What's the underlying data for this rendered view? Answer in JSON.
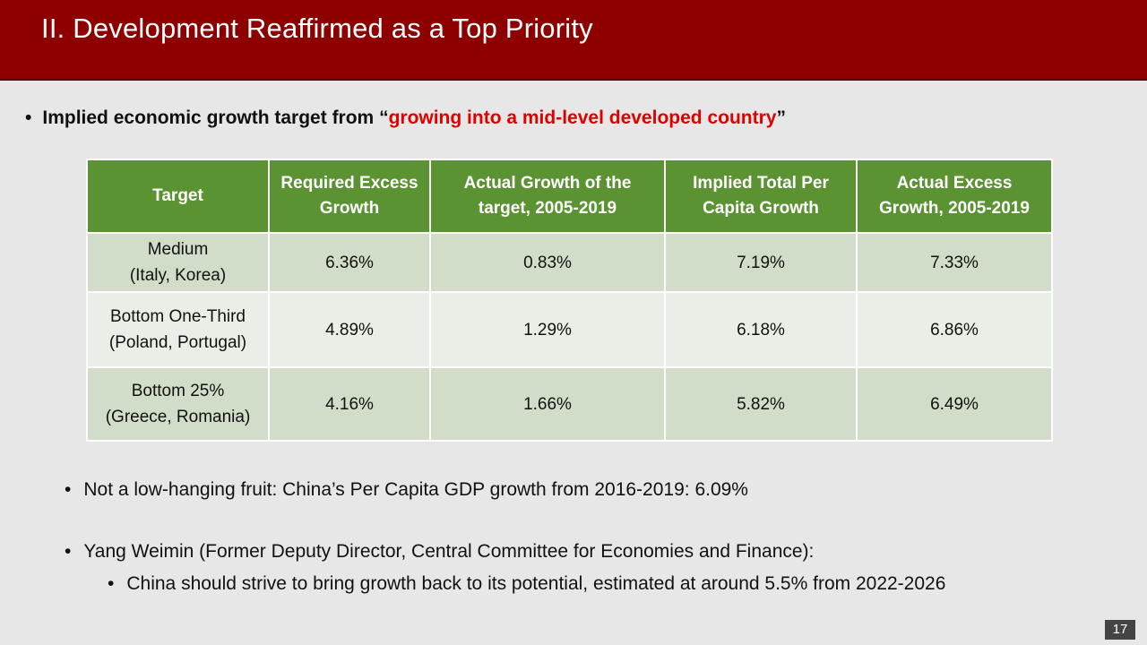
{
  "slide": {
    "title": "II. Development Reaffirmed as a Top Priority",
    "page_number": "17"
  },
  "main_bullet": {
    "prefix": "Implied economic growth target from “",
    "highlight": "growing into a mid-level developed country",
    "suffix": "”",
    "highlight_color": "#e00000"
  },
  "table": {
    "headers": [
      "Target",
      "Required Excess Growth",
      "Actual Growth of the target, 2005-2019",
      "Implied Total Per Capita Growth",
      "Actual Excess Growth, 2005-2019"
    ],
    "rows": [
      {
        "target_line1": "Medium",
        "target_line2": "(Italy, Korea)",
        "required_excess": "6.36%",
        "actual_growth": "0.83%",
        "implied_total": "7.19%",
        "actual_excess": "7.33%"
      },
      {
        "target_line1": "Bottom One-Third",
        "target_line2": "(Poland, Portugal)",
        "required_excess": "4.89%",
        "actual_growth": "1.29%",
        "implied_total": "6.18%",
        "actual_excess": "6.86%"
      },
      {
        "target_line1": "Bottom 25%",
        "target_line2": "(Greece, Romania)",
        "required_excess": "4.16%",
        "actual_growth": "1.66%",
        "implied_total": "5.82%",
        "actual_excess": "6.49%"
      }
    ]
  },
  "sub_bullets": [
    "Not a low-hanging fruit: China’s Per Capita GDP growth from 2016-2019: 6.09%",
    "Yang Weimin (Former Deputy Director, Central Committee for Economies and Finance):",
    "China should strive to bring growth back to its potential, estimated at around 5.5% from 2022-2026"
  ],
  "colors": {
    "title_bar": "#8e0000",
    "table_header": "#5b9332",
    "row_dark": "#d2ddc9",
    "row_light": "#e9eee6",
    "background": "#e7e7e7"
  }
}
